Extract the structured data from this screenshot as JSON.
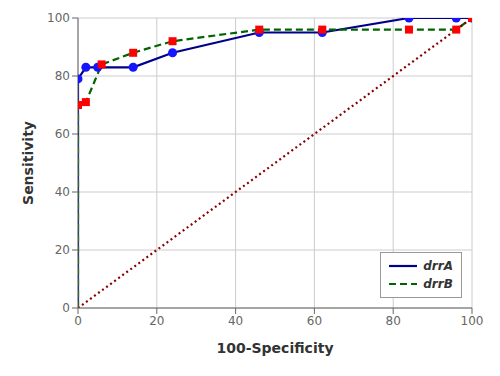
{
  "chart_data": {
    "type": "line",
    "xlabel": "100-Specificity",
    "ylabel": "Sensitivity",
    "xlim": [
      0,
      100
    ],
    "ylim": [
      0,
      100
    ],
    "xticks": [
      0,
      20,
      40,
      60,
      80,
      100
    ],
    "yticks": [
      0,
      20,
      40,
      60,
      80,
      100
    ],
    "grid": true,
    "legend": "lower right",
    "series": [
      {
        "name": "drrA",
        "type": "line",
        "line_style": "solid",
        "color": "#00008B",
        "x": [
          0,
          0,
          0,
          0,
          0,
          0,
          0,
          0,
          0,
          0,
          0,
          0,
          0,
          0,
          0,
          0,
          0,
          0,
          0,
          2,
          5,
          14,
          24,
          46,
          62,
          84,
          96,
          100
        ],
        "values": [
          0,
          4,
          8,
          13,
          17,
          21,
          25,
          29,
          33,
          38,
          42,
          46,
          50,
          54,
          58,
          63,
          67,
          71,
          79,
          83,
          83,
          83,
          88,
          95,
          95,
          100,
          100,
          100
        ]
      },
      {
        "type": "scatter",
        "marker": "circle",
        "color": "#1515FF",
        "x": [
          0,
          2,
          5,
          14,
          24,
          46,
          62,
          84,
          96,
          100
        ],
        "values": [
          79,
          83,
          83,
          83,
          88,
          95,
          95,
          100,
          100,
          100
        ]
      },
      {
        "name": "drrB",
        "type": "line",
        "line_style": "dashed",
        "color": "#006400",
        "x": [
          0,
          0,
          0,
          0,
          0,
          0,
          0,
          0,
          0,
          0,
          0,
          0,
          0,
          0,
          2,
          6,
          14,
          24,
          46,
          62,
          84,
          96,
          100
        ],
        "values": [
          0,
          4,
          8,
          13,
          17,
          21,
          25,
          29,
          33,
          38,
          42,
          46,
          50,
          70,
          71,
          84,
          88,
          92,
          96,
          96,
          96,
          96,
          100
        ]
      },
      {
        "type": "scatter",
        "marker": "square",
        "color": "#ff0000",
        "x": [
          0,
          2,
          6,
          14,
          24,
          46,
          62,
          84,
          96,
          100
        ],
        "values": [
          70,
          71,
          84,
          88,
          92,
          96,
          96,
          96,
          96,
          100
        ]
      },
      {
        "type": "line",
        "line_style": "dotted",
        "color": "#8B0000",
        "x": [
          0,
          100
        ],
        "values": [
          0,
          100
        ]
      }
    ]
  }
}
